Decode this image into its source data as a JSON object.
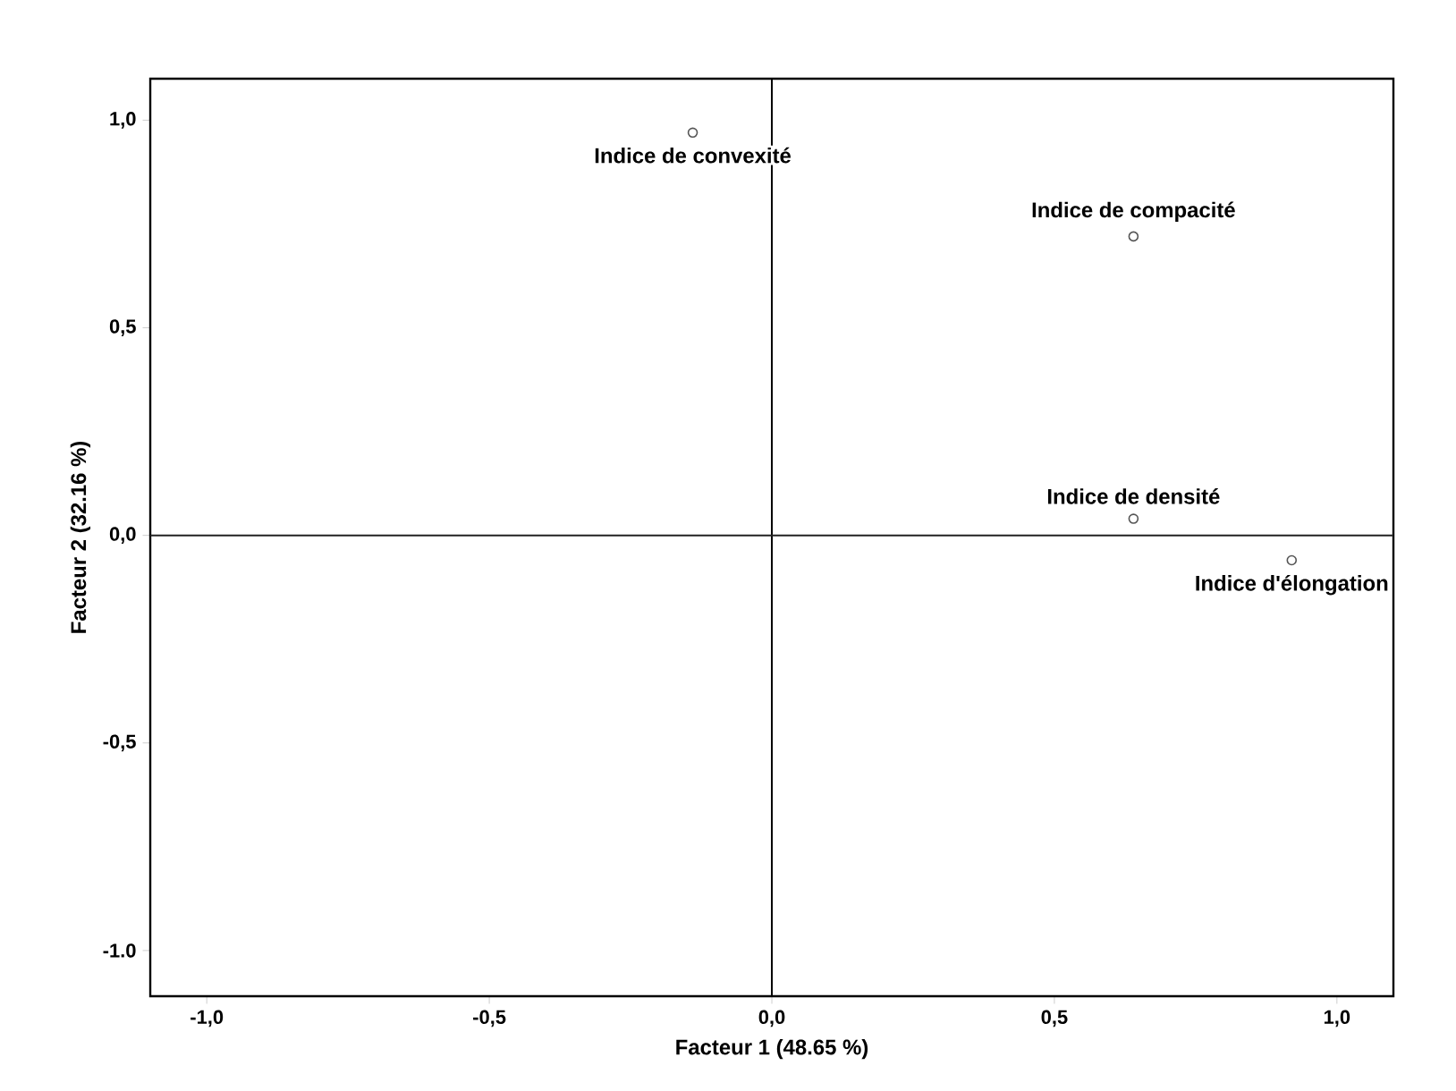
{
  "chart_data": {
    "type": "scatter",
    "xlabel": "Facteur 1 (48.65 %)",
    "ylabel": "Facteur 2 (32.16 %)",
    "xlim": [
      -1.1,
      1.1
    ],
    "ylim": [
      -1.11,
      1.1
    ],
    "xticks": [
      {
        "value": -1.0,
        "label": "-1,0"
      },
      {
        "value": -0.5,
        "label": "-0,5"
      },
      {
        "value": 0.0,
        "label": "0,0"
      },
      {
        "value": 0.5,
        "label": "0,5"
      },
      {
        "value": 1.0,
        "label": "1,0"
      }
    ],
    "yticks": [
      {
        "value": -1.0,
        "label": "-1.0"
      },
      {
        "value": -0.5,
        "label": "-0,5"
      },
      {
        "value": 0.0,
        "label": "0,0"
      },
      {
        "value": 0.5,
        "label": "0,5"
      },
      {
        "value": 1.0,
        "label": "1,0"
      }
    ],
    "marker": "circle",
    "grid": false,
    "ref_lines": [
      {
        "axis": "x",
        "value": 0,
        "color": "#000000"
      },
      {
        "axis": "y",
        "value": 0,
        "color": "#222222"
      }
    ],
    "series": [
      {
        "name": "Indice de convexité",
        "color": "#555555",
        "x": [
          -0.14
        ],
        "values": [
          0.97
        ]
      },
      {
        "name": "Indice de compacité",
        "color": "#555555",
        "x": [
          0.64
        ],
        "values": [
          0.72
        ]
      },
      {
        "name": "Indice de densité",
        "color": "#555555",
        "x": [
          0.64
        ],
        "values": [
          0.04
        ]
      },
      {
        "name": "Indice d'élongation",
        "color": "#555555",
        "x": [
          0.92
        ],
        "values": [
          -0.06
        ]
      }
    ]
  }
}
